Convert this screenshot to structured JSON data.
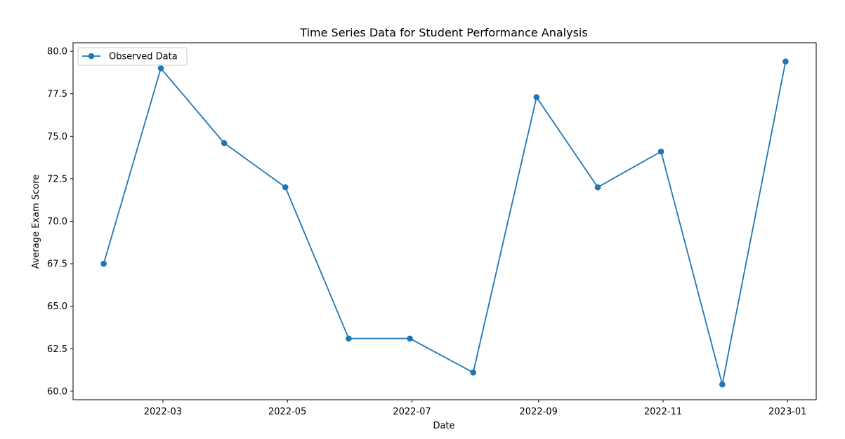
{
  "chart_data": {
    "type": "line",
    "title": "Time Series Data for Student Performance Analysis",
    "xlabel": "Date",
    "ylabel": "Average Exam Score",
    "x": [
      "2022-01-31",
      "2022-02-28",
      "2022-03-31",
      "2022-04-30",
      "2022-05-31",
      "2022-06-30",
      "2022-07-31",
      "2022-08-31",
      "2022-09-30",
      "2022-10-31",
      "2022-11-30",
      "2022-12-31"
    ],
    "series": [
      {
        "name": "Observed Data",
        "color": "#1f77b4",
        "marker": "circle",
        "values": [
          67.5,
          79.0,
          74.6,
          72.0,
          63.1,
          63.1,
          61.1,
          77.3,
          72.0,
          74.1,
          60.4,
          79.4
        ]
      }
    ],
    "xlim": [
      "2022-01-16",
      "2023-01-15"
    ],
    "ylim": [
      59.5,
      80.5
    ],
    "xticks": [
      {
        "date": "2022-03-01",
        "label": "2022-03"
      },
      {
        "date": "2022-05-01",
        "label": "2022-05"
      },
      {
        "date": "2022-07-01",
        "label": "2022-07"
      },
      {
        "date": "2022-09-01",
        "label": "2022-09"
      },
      {
        "date": "2022-11-01",
        "label": "2022-11"
      },
      {
        "date": "2023-01-01",
        "label": "2023-01"
      }
    ],
    "yticks": [
      {
        "value": 60.0,
        "label": "60.0"
      },
      {
        "value": 62.5,
        "label": "62.5"
      },
      {
        "value": 65.0,
        "label": "65.0"
      },
      {
        "value": 67.5,
        "label": "67.5"
      },
      {
        "value": 70.0,
        "label": "70.0"
      },
      {
        "value": 72.5,
        "label": "72.5"
      },
      {
        "value": 75.0,
        "label": "75.0"
      },
      {
        "value": 77.5,
        "label": "77.5"
      },
      {
        "value": 80.0,
        "label": "80.0"
      }
    ],
    "grid": false,
    "legend_position": "top-left"
  }
}
